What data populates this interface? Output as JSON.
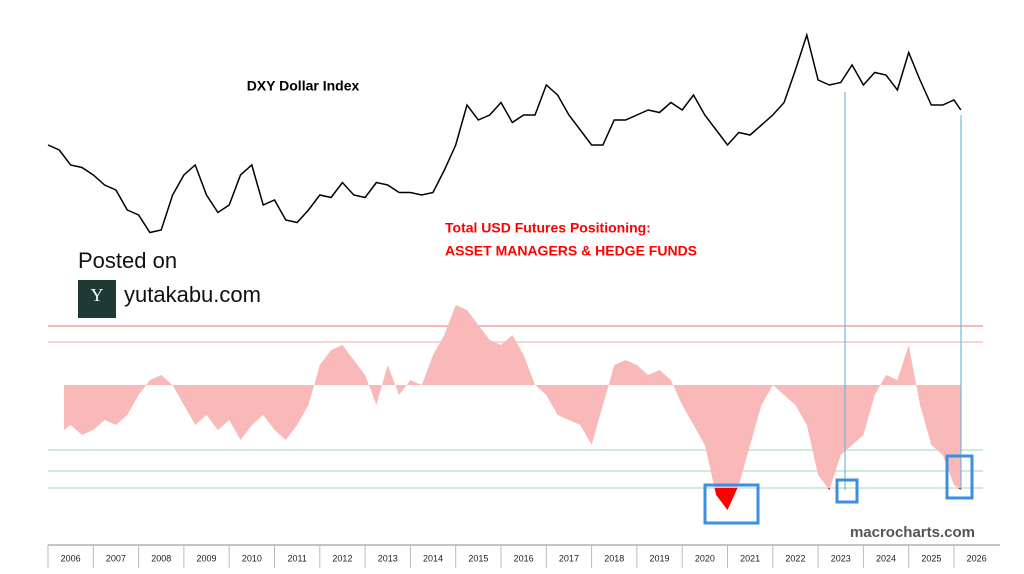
{
  "overlay": {
    "posted": "Posted on",
    "site": "yutakabu.com",
    "logo": "Y",
    "watermark": "macrocharts.com"
  },
  "chart_data": [
    {
      "type": "line",
      "title": "DXY Dollar Index",
      "color": "#000000",
      "x": [
        2006,
        2006.25,
        2006.5,
        2006.75,
        2007,
        2007.25,
        2007.5,
        2007.75,
        2008,
        2008.25,
        2008.5,
        2008.75,
        2009,
        2009.25,
        2009.5,
        2009.75,
        2010,
        2010.25,
        2010.5,
        2010.75,
        2011,
        2011.25,
        2011.5,
        2011.75,
        2012,
        2012.25,
        2012.5,
        2012.75,
        2013,
        2013.25,
        2013.5,
        2013.75,
        2014,
        2014.25,
        2014.5,
        2014.75,
        2015,
        2015.25,
        2015.5,
        2015.75,
        2016,
        2016.25,
        2016.5,
        2016.75,
        2017,
        2017.25,
        2017.5,
        2017.75,
        2018,
        2018.25,
        2018.5,
        2018.75,
        2019,
        2019.25,
        2019.5,
        2019.75,
        2020,
        2020.25,
        2020.5,
        2020.75,
        2021,
        2021.25,
        2021.5,
        2021.75,
        2022,
        2022.25,
        2022.5,
        2022.75,
        2023,
        2023.25,
        2023.5,
        2023.75,
        2024,
        2024.25,
        2024.5,
        2024.75,
        2025,
        2025.25,
        2025.5,
        2025.75,
        2026,
        2026.15
      ],
      "values": [
        90,
        89,
        86,
        85.5,
        84,
        82,
        81,
        77,
        76,
        72.5,
        73,
        80,
        84,
        86,
        80,
        76.5,
        78,
        84,
        86,
        78,
        79,
        75,
        74.5,
        77,
        80,
        79.5,
        82.5,
        80,
        79.5,
        82.5,
        82,
        80.5,
        80.5,
        80,
        80.5,
        85,
        90,
        98,
        95,
        96,
        98.5,
        94.5,
        96,
        96,
        102,
        100,
        96,
        93,
        90,
        90,
        95,
        95,
        96,
        97,
        96.5,
        98.5,
        97,
        100,
        96,
        93,
        90,
        92.5,
        92,
        94,
        96,
        98.5,
        105,
        112,
        103,
        102,
        102.5,
        106,
        102,
        104.5,
        104,
        101,
        108.5,
        103,
        98,
        98,
        99,
        97
      ],
      "xlim": [
        2006,
        2026.2
      ],
      "ylim": [
        70,
        115
      ]
    },
    {
      "type": "area",
      "title": "Total USD Futures Positioning:",
      "subtitle": "ASSET MANAGERS & HEDGE FUNDS",
      "color": "#f9b9b9",
      "highlight_color": "#ff0000",
      "highlight_below": -103,
      "x": [
        2006,
        2006.25,
        2006.5,
        2006.75,
        2007,
        2007.25,
        2007.5,
        2007.75,
        2008,
        2008.25,
        2008.5,
        2008.75,
        2009,
        2009.25,
        2009.5,
        2009.75,
        2010,
        2010.25,
        2010.5,
        2010.75,
        2011,
        2011.25,
        2011.5,
        2011.75,
        2012,
        2012.25,
        2012.5,
        2012.75,
        2013,
        2013.25,
        2013.5,
        2013.75,
        2014,
        2014.25,
        2014.5,
        2014.75,
        2015,
        2015.25,
        2015.5,
        2015.75,
        2016,
        2016.25,
        2016.5,
        2016.75,
        2017,
        2017.25,
        2017.5,
        2017.75,
        2018,
        2018.25,
        2018.5,
        2018.75,
        2019,
        2019.25,
        2019.5,
        2019.75,
        2020,
        2020.25,
        2020.5,
        2020.75,
        2021,
        2021.25,
        2021.5,
        2021.75,
        2022,
        2022.25,
        2022.5,
        2022.75,
        2023,
        2023.25,
        2023.5,
        2023.75,
        2024,
        2024.25,
        2024.5,
        2024.75,
        2025,
        2025.25,
        2025.5,
        2025.75,
        2026,
        2026.15
      ],
      "values": [
        -30,
        -45,
        -40,
        -50,
        -45,
        -35,
        -40,
        -30,
        -10,
        5,
        10,
        0,
        -20,
        -40,
        -30,
        -45,
        -35,
        -55,
        -40,
        -30,
        -45,
        -55,
        -40,
        -20,
        20,
        35,
        40,
        25,
        10,
        -20,
        20,
        -10,
        5,
        0,
        30,
        50,
        80,
        75,
        60,
        45,
        40,
        50,
        30,
        0,
        -10,
        -30,
        -35,
        -40,
        -60,
        -20,
        20,
        25,
        20,
        10,
        15,
        5,
        -20,
        -40,
        -60,
        -110,
        -125,
        -100,
        -60,
        -20,
        0,
        -10,
        -20,
        -40,
        -90,
        -105,
        -70,
        -60,
        -50,
        -10,
        10,
        5,
        40,
        -20,
        -60,
        -70,
        -100,
        -105
      ],
      "levels": [
        {
          "value": 59,
          "color": "#f4a3a3"
        },
        {
          "value": 43,
          "color": "#f6c9c9"
        },
        {
          "value": -65,
          "color": "#bfe6cb"
        },
        {
          "value": -86,
          "color": "#bfe6cb"
        },
        {
          "value": -103,
          "color": "#bfe6cb"
        }
      ],
      "xlim": [
        2006,
        2026.2
      ],
      "ylim": [
        -140,
        90
      ],
      "xticks": [
        2006,
        2007,
        2008,
        2009,
        2010,
        2011,
        2012,
        2013,
        2014,
        2015,
        2016,
        2017,
        2018,
        2019,
        2020,
        2021,
        2022,
        2023,
        2024,
        2025,
        2026
      ]
    }
  ]
}
